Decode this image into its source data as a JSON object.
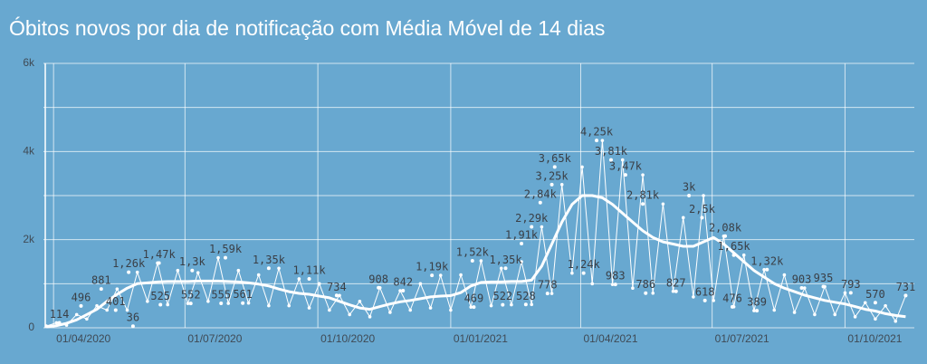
{
  "chart_data": {
    "type": "line",
    "title": "Óbitos novos por dia de notificação com Média Móvel de 14 dias",
    "xlim": [
      "25/03/2020",
      "18/11/2021"
    ],
    "xticks": [
      "01/04/2020",
      "01/07/2020",
      "01/10/2020",
      "01/01/2021",
      "01/04/2021",
      "01/07/2021",
      "01/10/2021"
    ],
    "ylim": [
      0,
      6000
    ],
    "yticks": [
      {
        "value": 0,
        "label": "0"
      },
      {
        "value": 2000,
        "label": "2k"
      },
      {
        "value": 4000,
        "label": "4k"
      },
      {
        "value": 6000,
        "label": "6k"
      }
    ],
    "minor_yticks": [
      1000,
      3000,
      5000
    ],
    "grid": true,
    "x": [
      "27/03/2020",
      "03/04/2020",
      "10/04/2020",
      "17/04/2020",
      "24/04/2020",
      "01/05/2020",
      "08/05/2020",
      "15/05/2020",
      "22/05/2020",
      "29/05/2020",
      "05/06/2020",
      "12/06/2020",
      "19/06/2020",
      "26/06/2020",
      "03/07/2020",
      "10/07/2020",
      "17/07/2020",
      "24/07/2020",
      "31/07/2020",
      "07/08/2020",
      "14/08/2020",
      "21/08/2020",
      "28/08/2020",
      "04/09/2020",
      "11/09/2020",
      "18/09/2020",
      "25/09/2020",
      "02/10/2020",
      "09/10/2020",
      "16/10/2020",
      "23/10/2020",
      "30/10/2020",
      "06/11/2020",
      "13/11/2020",
      "20/11/2020",
      "27/11/2020",
      "04/12/2020",
      "11/12/2020",
      "18/12/2020",
      "25/12/2020",
      "01/01/2021",
      "08/01/2021",
      "15/01/2021",
      "22/01/2021",
      "29/01/2021",
      "05/02/2021",
      "12/02/2021",
      "19/02/2021",
      "26/02/2021",
      "05/03/2021",
      "12/03/2021",
      "19/03/2021",
      "26/03/2021",
      "02/04/2021",
      "09/04/2021",
      "16/04/2021",
      "23/04/2021",
      "30/04/2021",
      "07/05/2021",
      "14/05/2021",
      "21/05/2021",
      "28/05/2021",
      "04/06/2021",
      "11/06/2021",
      "18/06/2021",
      "25/06/2021",
      "02/07/2021",
      "09/07/2021",
      "16/07/2021",
      "23/07/2021",
      "30/07/2021",
      "06/08/2021",
      "13/08/2021",
      "20/08/2021",
      "27/08/2021",
      "03/09/2021",
      "10/09/2021",
      "17/09/2021",
      "24/09/2021",
      "01/10/2021",
      "08/10/2021",
      "15/10/2021",
      "22/10/2021",
      "29/10/2021",
      "05/11/2021",
      "12/11/2021"
    ],
    "series": [
      {
        "color": "#ffffff",
        "line_width": 1,
        "markers": true,
        "values": [
          40,
          114,
          60,
          300,
          200,
          500,
          401,
          881,
          400,
          1260,
          600,
          1470,
          525,
          1300,
          552,
          1250,
          600,
          1590,
          555,
          1300,
          561,
          1200,
          500,
          1350,
          500,
          1110,
          450,
          1000,
          400,
          734,
          300,
          600,
          250,
          908,
          350,
          842,
          400,
          1000,
          450,
          1190,
          400,
          1200,
          469,
          1520,
          500,
          1350,
          522,
          1500,
          528,
          2290,
          778,
          3250,
          1240,
          3650,
          1000,
          4250,
          983,
          3810,
          900,
          3470,
          786,
          2810,
          827,
          2500,
          700,
          3000,
          618,
          2080,
          476,
          1650,
          389,
          1320,
          400,
          1200,
          350,
          903,
          300,
          935,
          300,
          793,
          250,
          570,
          200,
          500,
          150,
          731
        ]
      },
      {
        "color": "#ffffff",
        "line_width": 3,
        "markers": false,
        "values": [
          20,
          50,
          100,
          180,
          300,
          420,
          600,
          760,
          900,
          1000,
          1020,
          1040,
          1050,
          1050,
          1050,
          1060,
          1060,
          1060,
          1050,
          1040,
          1020,
          990,
          950,
          880,
          820,
          780,
          760,
          720,
          680,
          600,
          520,
          450,
          420,
          480,
          540,
          590,
          620,
          660,
          700,
          720,
          730,
          800,
          950,
          1030,
          1040,
          1040,
          1050,
          1050,
          1080,
          1400,
          1900,
          2400,
          2800,
          3000,
          3000,
          2950,
          2800,
          2600,
          2400,
          2200,
          2050,
          1950,
          1900,
          1850,
          1850,
          1950,
          2050,
          1900,
          1700,
          1500,
          1300,
          1150,
          1000,
          900,
          820,
          740,
          680,
          620,
          580,
          540,
          480,
          420,
          380,
          320,
          280,
          250
        ]
      }
    ],
    "annotations": [
      {
        "x": "05/04/2020",
        "value": 114,
        "label": "114"
      },
      {
        "x": "20/04/2020",
        "value": 496,
        "label": "496"
      },
      {
        "x": "04/05/2020",
        "value": 881,
        "label": "881"
      },
      {
        "x": "14/05/2020",
        "value": 401,
        "label": "401"
      },
      {
        "x": "26/05/2020",
        "value": 36,
        "label": "36"
      },
      {
        "x": "23/05/2020",
        "value": 1260,
        "label": "1,26k"
      },
      {
        "x": "14/06/2020",
        "value": 525,
        "label": "525"
      },
      {
        "x": "13/06/2020",
        "value": 1470,
        "label": "1,47k"
      },
      {
        "x": "06/07/2020",
        "value": 1300,
        "label": "1,3k"
      },
      {
        "x": "05/07/2020",
        "value": 552,
        "label": "552"
      },
      {
        "x": "29/07/2020",
        "value": 1590,
        "label": "1,59k"
      },
      {
        "x": "26/07/2020",
        "value": 555,
        "label": "555"
      },
      {
        "x": "10/08/2020",
        "value": 561,
        "label": "561"
      },
      {
        "x": "28/08/2020",
        "value": 1350,
        "label": "1,35k"
      },
      {
        "x": "25/09/2020",
        "value": 1110,
        "label": "1,11k"
      },
      {
        "x": "14/10/2020",
        "value": 734,
        "label": "734"
      },
      {
        "x": "12/11/2020",
        "value": 908,
        "label": "908"
      },
      {
        "x": "29/11/2020",
        "value": 842,
        "label": "842"
      },
      {
        "x": "19/12/2020",
        "value": 1190,
        "label": "1,19k"
      },
      {
        "x": "16/01/2021",
        "value": 1520,
        "label": "1,52k"
      },
      {
        "x": "17/01/2021",
        "value": 469,
        "label": "469"
      },
      {
        "x": "08/02/2021",
        "value": 1350,
        "label": "1,35k"
      },
      {
        "x": "06/02/2021",
        "value": 522,
        "label": "522"
      },
      {
        "x": "22/02/2021",
        "value": 528,
        "label": "528"
      },
      {
        "x": "19/02/2021",
        "value": 1910,
        "label": "1,91k"
      },
      {
        "x": "26/02/2021",
        "value": 2290,
        "label": "2,29k"
      },
      {
        "x": "09/03/2021",
        "value": 778,
        "label": "778"
      },
      {
        "x": "04/03/2021",
        "value": 2840,
        "label": "2,84k"
      },
      {
        "x": "12/03/2021",
        "value": 3250,
        "label": "3,25k"
      },
      {
        "x": "14/03/2021",
        "value": 3650,
        "label": "3,65k"
      },
      {
        "x": "12/04/2021",
        "value": 4250,
        "label": "4,25k"
      },
      {
        "x": "03/04/2021",
        "value": 1240,
        "label": "1,24k"
      },
      {
        "x": "22/04/2021",
        "value": 3810,
        "label": "3,81k"
      },
      {
        "x": "02/05/2021",
        "value": 3470,
        "label": "3,47k"
      },
      {
        "x": "14/05/2021",
        "value": 2810,
        "label": "2,81k"
      },
      {
        "x": "25/04/2021",
        "value": 983,
        "label": "983"
      },
      {
        "x": "16/05/2021",
        "value": 786,
        "label": "786"
      },
      {
        "x": "06/06/2021",
        "value": 827,
        "label": "827"
      },
      {
        "x": "15/06/2021",
        "value": 3000,
        "label": "3k"
      },
      {
        "x": "24/06/2021",
        "value": 2500,
        "label": "2,5k"
      },
      {
        "x": "10/07/2021",
        "value": 2080,
        "label": "2,08k"
      },
      {
        "x": "26/06/2021",
        "value": 618,
        "label": "618"
      },
      {
        "x": "16/07/2021",
        "value": 1650,
        "label": "1,65k"
      },
      {
        "x": "15/07/2021",
        "value": 476,
        "label": "476"
      },
      {
        "x": "01/08/2021",
        "value": 389,
        "label": "389"
      },
      {
        "x": "08/08/2021",
        "value": 1320,
        "label": "1,32k"
      },
      {
        "x": "01/09/2021",
        "value": 903,
        "label": "903"
      },
      {
        "x": "16/09/2021",
        "value": 935,
        "label": "935"
      },
      {
        "x": "05/10/2021",
        "value": 793,
        "label": "793"
      },
      {
        "x": "22/10/2021",
        "value": 570,
        "label": "570"
      },
      {
        "x": "12/11/2021",
        "value": 731,
        "label": "731"
      }
    ]
  }
}
